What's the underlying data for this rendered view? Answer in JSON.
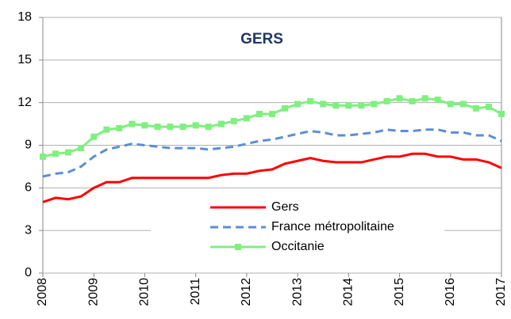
{
  "chart_data": {
    "type": "line",
    "title": "GERS",
    "x": [
      2008,
      2008.25,
      2008.5,
      2008.75,
      2009,
      2009.25,
      2009.5,
      2009.75,
      2010,
      2010.25,
      2010.5,
      2010.75,
      2011,
      2011.25,
      2011.5,
      2011.75,
      2012,
      2012.25,
      2012.5,
      2012.75,
      2013,
      2013.25,
      2013.5,
      2013.75,
      2014,
      2014.25,
      2014.5,
      2014.75,
      2015,
      2015.25,
      2015.5,
      2015.75,
      2016,
      2016.25,
      2016.5,
      2016.75,
      2017
    ],
    "series": [
      {
        "name": "Gers",
        "color": "#ff0000",
        "line_style": "solid",
        "marker": "none",
        "values": [
          5.0,
          5.3,
          5.2,
          5.4,
          6.0,
          6.4,
          6.4,
          6.7,
          6.7,
          6.7,
          6.7,
          6.7,
          6.7,
          6.7,
          6.9,
          7.0,
          7.0,
          7.2,
          7.3,
          7.7,
          7.9,
          8.1,
          7.9,
          7.8,
          7.8,
          7.8,
          8.0,
          8.2,
          8.2,
          8.4,
          8.4,
          8.2,
          8.2,
          8.0,
          8.0,
          7.8,
          7.4
        ]
      },
      {
        "name": "France métropolitaine",
        "color": "#5b8ed6",
        "line_style": "dashed",
        "marker": "none",
        "values": [
          6.8,
          7.0,
          7.1,
          7.5,
          8.2,
          8.7,
          8.9,
          9.1,
          9.0,
          8.9,
          8.8,
          8.8,
          8.8,
          8.7,
          8.8,
          8.9,
          9.1,
          9.3,
          9.4,
          9.6,
          9.8,
          10.0,
          9.9,
          9.7,
          9.7,
          9.8,
          9.9,
          10.1,
          10.0,
          10.0,
          10.1,
          10.1,
          9.9,
          9.9,
          9.7,
          9.7,
          9.3
        ]
      },
      {
        "name": "Occitanie",
        "color": "#7ff07f",
        "line_style": "solid",
        "marker": "square",
        "values": [
          8.2,
          8.4,
          8.5,
          8.8,
          9.6,
          10.1,
          10.2,
          10.5,
          10.4,
          10.3,
          10.3,
          10.3,
          10.4,
          10.3,
          10.5,
          10.7,
          10.9,
          11.2,
          11.2,
          11.6,
          11.9,
          12.1,
          11.9,
          11.8,
          11.8,
          11.8,
          11.9,
          12.1,
          12.3,
          12.1,
          12.3,
          12.2,
          11.9,
          11.9,
          11.6,
          11.7,
          11.2
        ]
      }
    ],
    "xlim": [
      2008,
      2017
    ],
    "xticks": [
      2008,
      2009,
      2010,
      2011,
      2012,
      2013,
      2014,
      2015,
      2016,
      2017
    ],
    "ylim": [
      0,
      18
    ],
    "yticks": [
      0,
      3,
      6,
      9,
      12,
      15,
      18
    ],
    "grid": true,
    "legend_position": "bottom"
  }
}
